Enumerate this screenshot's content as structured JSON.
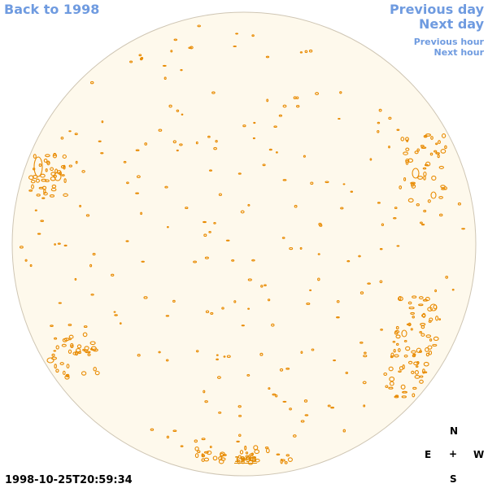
{
  "nav": {
    "back": "Back to 1998",
    "previous_day": "Previous day",
    "next_day": "Next day",
    "previous_hour": "Previous hour",
    "next_hour": "Next hour"
  },
  "timestamp": "1998-10-25T20:59:34",
  "compass": {
    "north": "N",
    "east": "E",
    "center": "+",
    "west": "W",
    "south": "S"
  },
  "year_link": "1998",
  "colors": {
    "disk_fill": "#fef9ec",
    "disk_edge": "#cfc6b4",
    "contour": "#e88a00",
    "nav_link": "#6f9be0"
  }
}
